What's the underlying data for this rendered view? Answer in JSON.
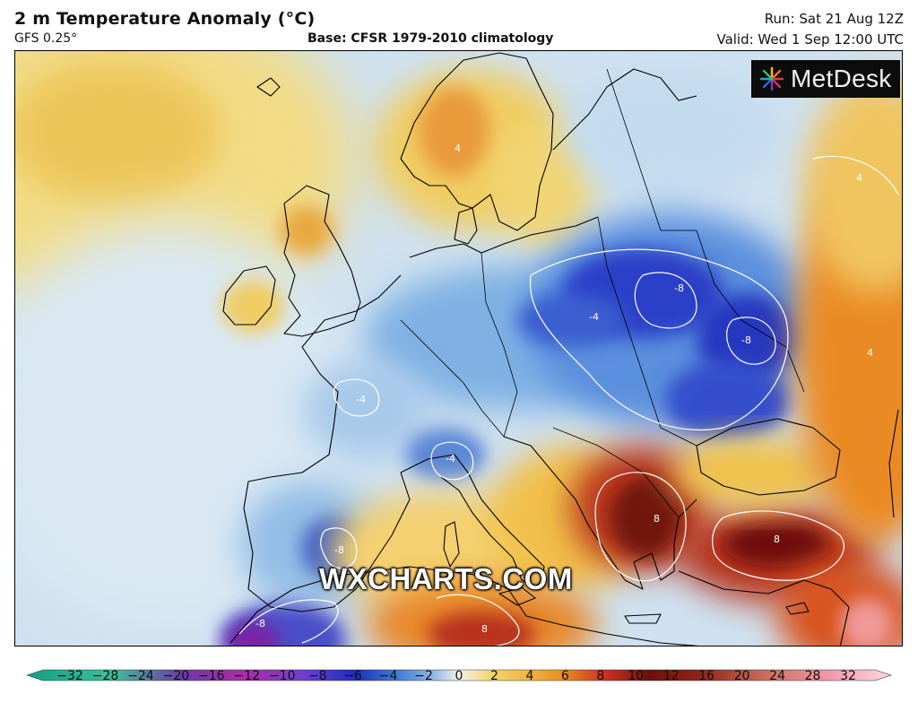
{
  "header": {
    "title": "2 m Temperature Anomaly (°C)",
    "model": "GFS 0.25°",
    "base": "Base: CFSR 1979-2010 climatology",
    "run": "Run: Sat 21 Aug 12Z",
    "valid": "Valid: Wed 1 Sep 12:00 UTC"
  },
  "logo": {
    "text": "MetDesk",
    "icon": "burst-logo-icon"
  },
  "watermark": "WXCHARTS.COM",
  "contour_labels": [
    "4",
    "8",
    "-4",
    "-8"
  ],
  "colorbar": {
    "ticks": [
      "−32",
      "−28",
      "−24",
      "−20",
      "−16",
      "−12",
      "−10",
      "−8",
      "−6",
      "−4",
      "−2",
      "0",
      "2",
      "4",
      "6",
      "8",
      "10",
      "12",
      "16",
      "20",
      "24",
      "28",
      "32"
    ],
    "colors": {
      "neg_extreme": "#1a9a7a",
      "violet": "#8a1fa8",
      "deep_blue": "#1c2fb8",
      "blue": "#3f7fd8",
      "light_blue": "#bcd7ee",
      "neutral": "#f4f2e6",
      "yellow": "#f4d36a",
      "orange": "#ea8d24",
      "red": "#c8321c",
      "dark_red": "#6e1008",
      "pink": "#f29aaa"
    }
  }
}
